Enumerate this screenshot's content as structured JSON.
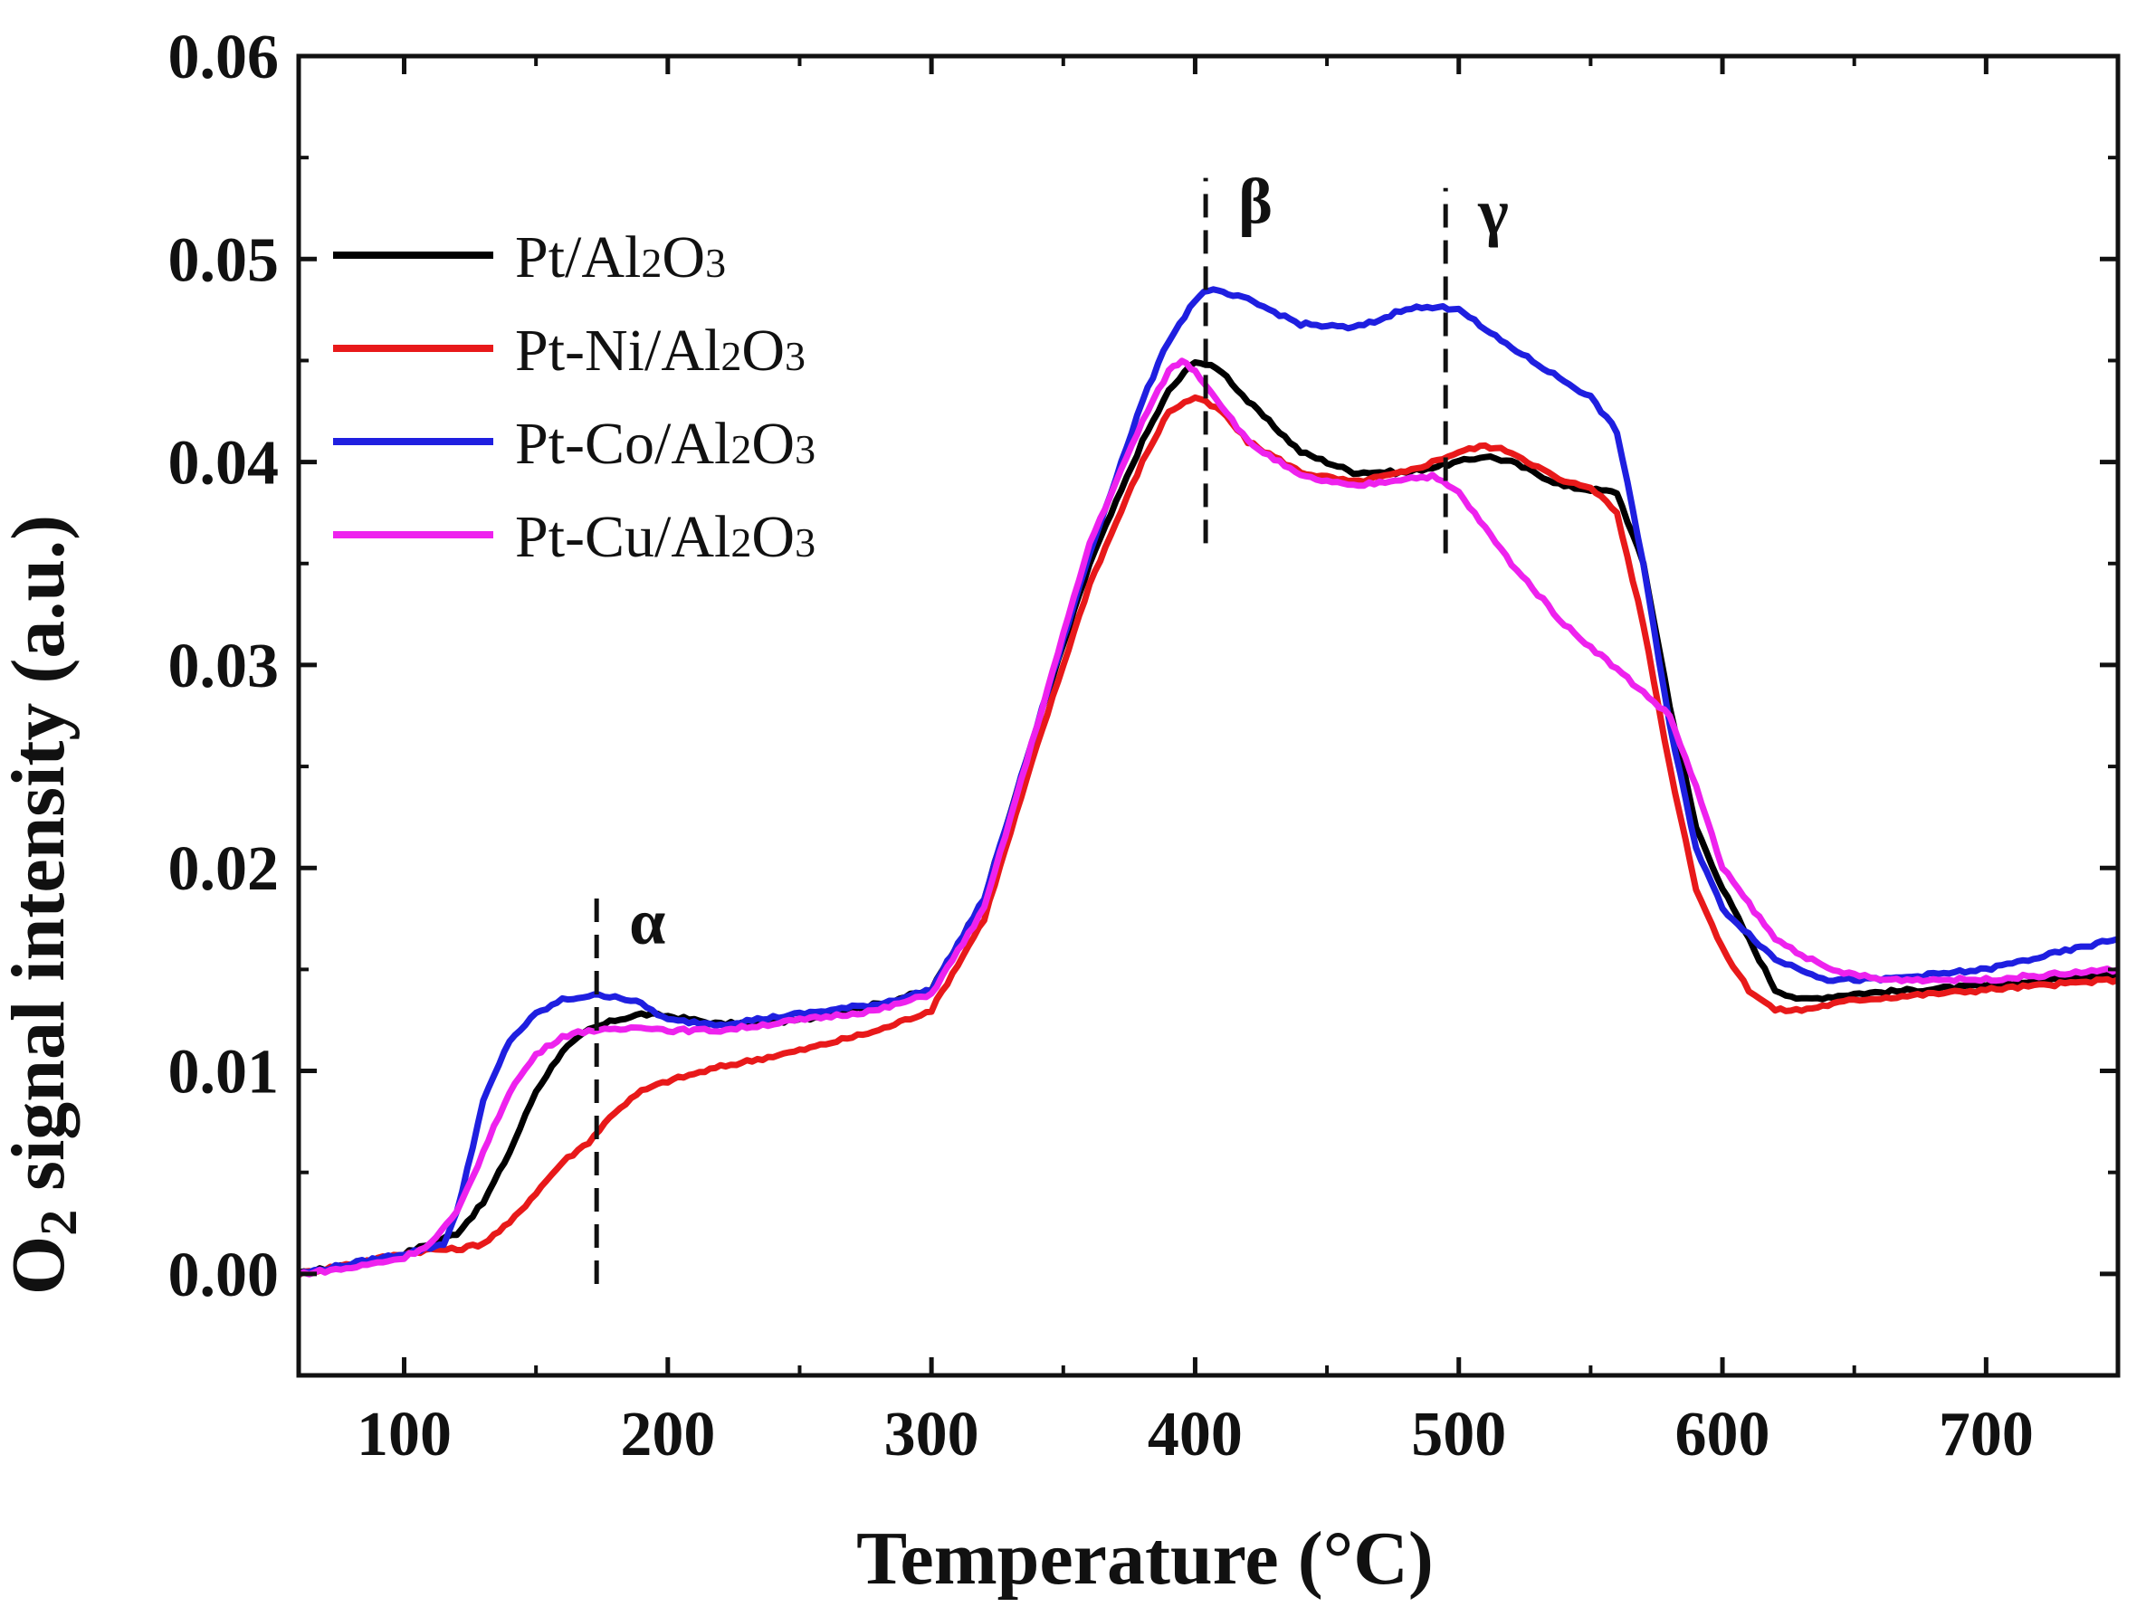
{
  "chart_data": {
    "type": "line",
    "title": "",
    "xlabel": "Temperature (°C)",
    "ylabel_parts": [
      "O",
      "2",
      " signal intensity (a.u.)"
    ],
    "xlim": [
      60,
      750
    ],
    "ylim": [
      -0.005,
      0.06
    ],
    "xticks": [
      100,
      200,
      300,
      400,
      500,
      600,
      700
    ],
    "xtick_labels": [
      "100",
      "200",
      "300",
      "400",
      "500",
      "600",
      "700"
    ],
    "yticks": [
      0.0,
      0.01,
      0.02,
      0.03,
      0.04,
      0.05,
      0.06
    ],
    "ytick_labels": [
      "0.00",
      "0.01",
      "0.02",
      "0.03",
      "0.04",
      "0.05",
      "0.06"
    ],
    "grid": false,
    "legend_position": "top-left",
    "series": [
      {
        "name": "Pt/Al2O3",
        "label_parts": [
          "Pt/Al",
          "2",
          "O",
          "3"
        ],
        "color": "#000000",
        "x": [
          60,
          80,
          100,
          110,
          120,
          130,
          140,
          150,
          160,
          170,
          180,
          190,
          200,
          220,
          250,
          280,
          300,
          320,
          340,
          360,
          380,
          390,
          400,
          410,
          420,
          440,
          460,
          480,
          500,
          510,
          520,
          540,
          560,
          570,
          580,
          590,
          600,
          610,
          620,
          630,
          650,
          700,
          750
        ],
        "y": [
          0.0,
          0.0005,
          0.001,
          0.0015,
          0.002,
          0.0035,
          0.006,
          0.009,
          0.011,
          0.012,
          0.0125,
          0.0128,
          0.0127,
          0.0123,
          0.0125,
          0.0133,
          0.014,
          0.0185,
          0.027,
          0.035,
          0.041,
          0.0435,
          0.045,
          0.0445,
          0.043,
          0.0405,
          0.0395,
          0.0395,
          0.04,
          0.0403,
          0.04,
          0.0388,
          0.0385,
          0.035,
          0.028,
          0.022,
          0.019,
          0.0165,
          0.014,
          0.0135,
          0.0138,
          0.0142,
          0.0148
        ]
      },
      {
        "name": "Pt-Ni/Al2O3",
        "label_parts": [
          "Pt-Ni/Al",
          "2",
          "O",
          "3"
        ],
        "color": "#e8191a",
        "x": [
          60,
          80,
          100,
          110,
          120,
          130,
          140,
          150,
          160,
          170,
          180,
          190,
          200,
          220,
          250,
          280,
          300,
          320,
          340,
          360,
          380,
          390,
          400,
          410,
          420,
          440,
          460,
          480,
          500,
          510,
          520,
          540,
          550,
          560,
          570,
          580,
          590,
          600,
          610,
          620,
          630,
          650,
          700,
          750
        ],
        "y": [
          0.0,
          0.0005,
          0.001,
          0.0012,
          0.0012,
          0.0015,
          0.0025,
          0.004,
          0.0055,
          0.0065,
          0.008,
          0.009,
          0.0095,
          0.0102,
          0.011,
          0.012,
          0.013,
          0.0175,
          0.026,
          0.034,
          0.04,
          0.0425,
          0.0432,
          0.0425,
          0.041,
          0.0395,
          0.039,
          0.0395,
          0.0405,
          0.0408,
          0.0405,
          0.039,
          0.0388,
          0.0375,
          0.032,
          0.025,
          0.019,
          0.016,
          0.014,
          0.013,
          0.013,
          0.0135,
          0.014,
          0.0145
        ]
      },
      {
        "name": "Pt-Co/Al2O3",
        "label_parts": [
          "Pt-Co/Al",
          "2",
          "O",
          "3"
        ],
        "color": "#1f1fe0",
        "x": [
          60,
          80,
          100,
          110,
          115,
          120,
          130,
          140,
          150,
          160,
          170,
          180,
          190,
          200,
          220,
          250,
          280,
          300,
          320,
          340,
          360,
          380,
          390,
          400,
          405,
          420,
          440,
          460,
          470,
          480,
          490,
          500,
          510,
          530,
          550,
          560,
          570,
          580,
          590,
          600,
          620,
          640,
          660,
          700,
          750
        ],
        "y": [
          0.0,
          0.0005,
          0.001,
          0.0013,
          0.0015,
          0.003,
          0.0085,
          0.0115,
          0.0128,
          0.0135,
          0.0137,
          0.0137,
          0.0133,
          0.0125,
          0.0123,
          0.0128,
          0.0133,
          0.014,
          0.0185,
          0.027,
          0.0355,
          0.043,
          0.046,
          0.048,
          0.0485,
          0.048,
          0.0468,
          0.0466,
          0.047,
          0.0476,
          0.0476,
          0.0476,
          0.0465,
          0.0448,
          0.0432,
          0.0415,
          0.035,
          0.027,
          0.021,
          0.018,
          0.0155,
          0.0145,
          0.0145,
          0.015,
          0.0165
        ]
      },
      {
        "name": "Pt-Cu/Al2O3",
        "label_parts": [
          "Pt-Cu/Al",
          "2",
          "O",
          "3"
        ],
        "color": "#ee22ee",
        "x": [
          60,
          80,
          100,
          110,
          120,
          130,
          140,
          150,
          160,
          170,
          180,
          190,
          200,
          220,
          250,
          280,
          300,
          320,
          340,
          360,
          380,
          390,
          395,
          400,
          410,
          420,
          440,
          460,
          480,
          490,
          500,
          520,
          540,
          560,
          580,
          590,
          600,
          620,
          640,
          660,
          700,
          750
        ],
        "y": [
          0.0,
          0.0003,
          0.0008,
          0.0015,
          0.003,
          0.006,
          0.009,
          0.0108,
          0.0117,
          0.012,
          0.012,
          0.0122,
          0.012,
          0.012,
          0.0125,
          0.013,
          0.0138,
          0.018,
          0.027,
          0.036,
          0.042,
          0.0445,
          0.045,
          0.0445,
          0.0428,
          0.041,
          0.0393,
          0.0388,
          0.0392,
          0.0393,
          0.0385,
          0.035,
          0.032,
          0.0298,
          0.0275,
          0.024,
          0.02,
          0.0165,
          0.015,
          0.0145,
          0.0145,
          0.015
        ]
      }
    ],
    "annotations": [
      {
        "text": "α",
        "x": 173,
        "y_range": [
          -0.0005,
          0.0185
        ]
      },
      {
        "text": "β",
        "x": 404,
        "y_range": [
          0.036,
          0.054
        ]
      },
      {
        "text": "γ",
        "x": 495,
        "y_range": [
          0.0355,
          0.0535
        ]
      }
    ]
  }
}
